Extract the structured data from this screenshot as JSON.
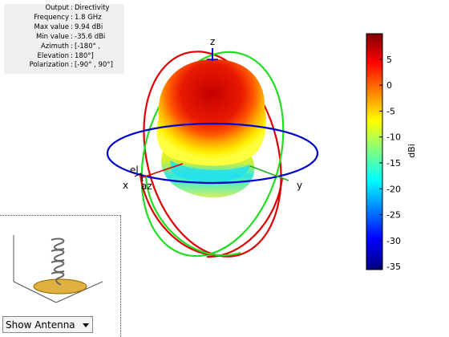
{
  "info_panel": {
    "rows": [
      {
        "key": "Output",
        "value": "Directivity"
      },
      {
        "key": "Frequency",
        "value": "1.8 GHz"
      },
      {
        "key": "Max value",
        "value": "9.94 dBi"
      },
      {
        "key": "Min value",
        "value": "-35.6 dBi"
      },
      {
        "key": "Azimuth",
        "value": "[-180° ,"
      },
      {
        "key": "Elevation",
        "value": "180°]"
      },
      {
        "key": "Polarization",
        "value": "[-90° , 90°]"
      }
    ]
  },
  "axes": {
    "x": "x",
    "y": "y",
    "z": "z",
    "el": "el",
    "az": "az"
  },
  "colorbar": {
    "label": "dBi",
    "min": -35.6,
    "max": 9.94,
    "ticks": [
      "5",
      "0",
      "-5",
      "-10",
      "-15",
      "-20",
      "-25",
      "-30",
      "-35"
    ],
    "tick_values": [
      5,
      0,
      -5,
      -10,
      -15,
      -20,
      -25,
      -30,
      -35
    ],
    "colormap": [
      "#7f0000",
      "#ff0000",
      "#ffff00",
      "#00ffff",
      "#0000ff",
      "#00007f"
    ]
  },
  "antenna_view": {
    "dropdown_value": "Show Antenna"
  },
  "colors": {
    "azimuth_circle": "#0000cc",
    "elevation_circle_red": "#dd0000",
    "elevation_circle_green": "#22dd22",
    "ground_plane": "#e0b040"
  }
}
